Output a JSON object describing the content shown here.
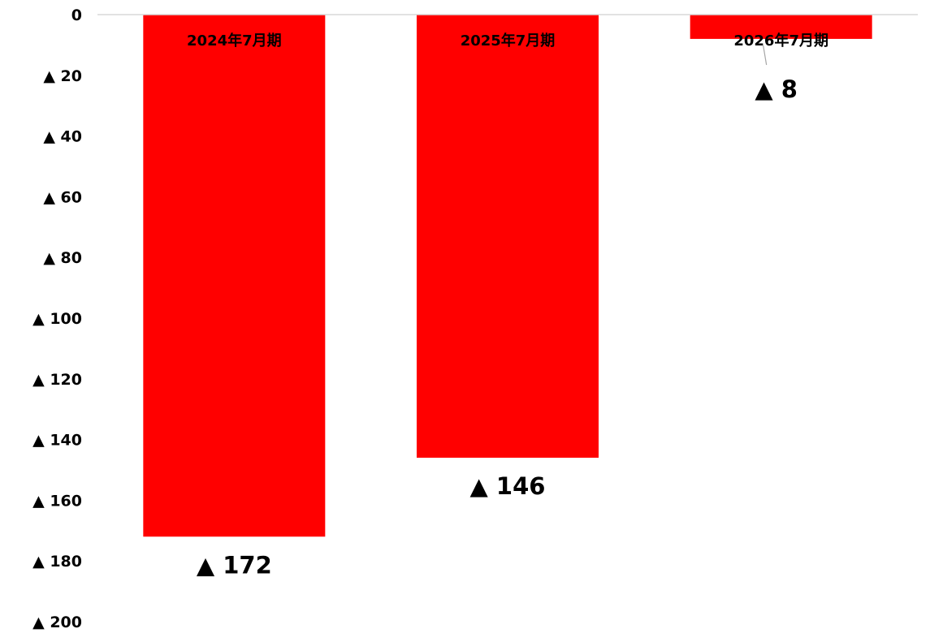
{
  "chart_data": {
    "type": "bar",
    "categories": [
      "2024年7月期",
      "2025年7月期",
      "2026年7月期"
    ],
    "values": [
      -172,
      -146,
      -8
    ],
    "data_labels": [
      "▲ 172",
      "▲ 146",
      "▲ 8"
    ],
    "title": "",
    "xlabel": "",
    "ylabel": "",
    "ylim": [
      -200,
      0
    ],
    "y_ticks": [
      0,
      -20,
      -40,
      -60,
      -80,
      -100,
      -120,
      -140,
      -160,
      -180,
      -200
    ],
    "y_tick_labels": [
      "0",
      "▲ 20",
      "▲ 40",
      "▲ 60",
      "▲ 80",
      "▲ 100",
      "▲ 120",
      "▲ 140",
      "▲ 160",
      "▲ 180",
      "▲ 200"
    ],
    "grid": false,
    "legend": "none",
    "bar_color": "#ff0000",
    "axis_line_color": "#d9d9d9",
    "leader_line_color": "#a6a6a6"
  }
}
